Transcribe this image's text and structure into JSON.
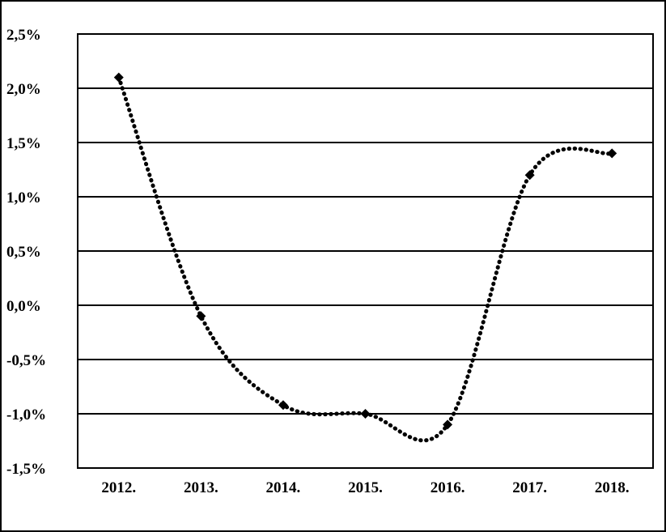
{
  "chart_data": {
    "type": "line",
    "title": "",
    "xlabel": "",
    "ylabel": "",
    "categories": [
      "2012.",
      "2013.",
      "2014.",
      "2015.",
      "2016.",
      "2017.",
      "2018."
    ],
    "series": [
      {
        "values": [
          2.1,
          -0.1,
          -0.92,
          -1.0,
          -1.1,
          1.2,
          1.4
        ]
      }
    ],
    "ylim": [
      -1.5,
      2.5
    ],
    "y_ticks": [
      2.5,
      2.0,
      1.5,
      1.0,
      0.5,
      0.0,
      -0.5,
      -1.0,
      -1.5
    ],
    "y_tick_labels": [
      "2,5%",
      "2,0%",
      "1,5%",
      "1,0%",
      "0,5%",
      "0,0%",
      "-0,5%",
      "-1,0%",
      "-1,5%"
    ],
    "line_style": "dotted-smoothed",
    "marker": "diamond",
    "grid": true,
    "legend": "none",
    "colors": {
      "line": "#000000",
      "grid": "#000000",
      "background": "#ffffff"
    }
  }
}
